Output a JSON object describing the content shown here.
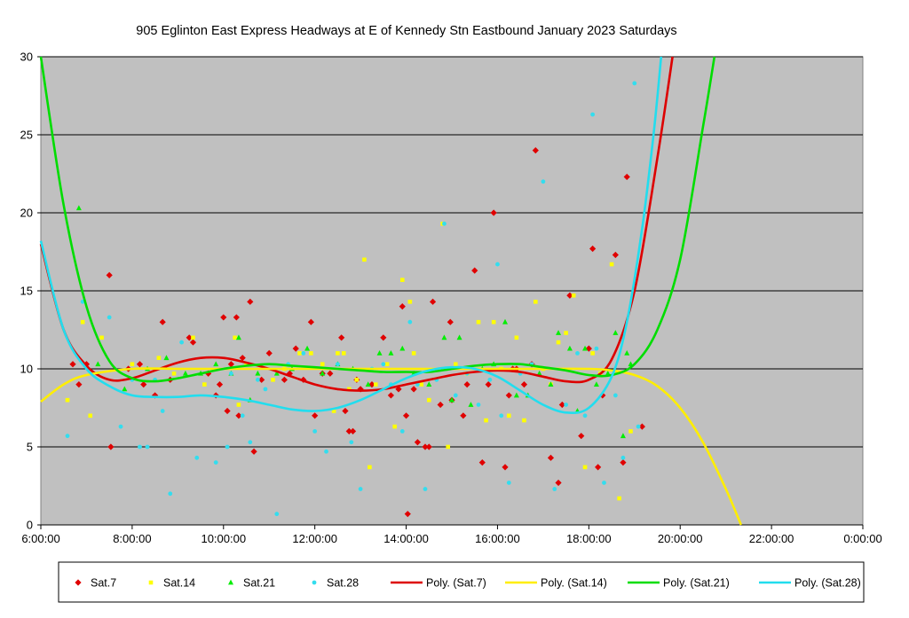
{
  "chart_data": {
    "type": "scatter",
    "title": "905 Eglinton East Express Headways at E of Kennedy Stn Eastbound January 2023  Saturdays",
    "xlabel": "",
    "ylabel": "",
    "xlim": [
      "6:00:00",
      "0:00:00"
    ],
    "ylim": [
      0,
      30
    ],
    "x_ticks": [
      "6:00:00",
      "8:00:00",
      "10:00:00",
      "12:00:00",
      "14:00:00",
      "16:00:00",
      "18:00:00",
      "20:00:00",
      "22:00:00",
      "0:00:00"
    ],
    "y_ticks": [
      "0",
      "5",
      "10",
      "15",
      "20",
      "25",
      "30"
    ],
    "grid": "horizontal",
    "plot_background": "#c0c0c0",
    "legend_position": "bottom",
    "series": [
      {
        "name": "Sat.7",
        "marker": "diamond",
        "color": "#e00000",
        "x": [
          "6:42",
          "6:50",
          "7:00",
          "7:30",
          "7:32",
          "7:55",
          "8:10",
          "8:15",
          "8:30",
          "8:40",
          "8:50",
          "9:15",
          "9:20",
          "9:40",
          "9:50",
          "9:55",
          "10:00",
          "10:05",
          "10:10",
          "10:17",
          "10:20",
          "10:25",
          "10:35",
          "10:40",
          "10:50",
          "11:00",
          "11:20",
          "11:27",
          "11:35",
          "11:45",
          "11:55",
          "12:00",
          "12:10",
          "12:20",
          "12:35",
          "12:40",
          "12:45",
          "12:50",
          "12:55",
          "13:00",
          "13:15",
          "13:30",
          "13:40",
          "13:50",
          "13:55",
          "14:00",
          "14:02",
          "14:10",
          "14:15",
          "14:25",
          "14:30",
          "14:35",
          "14:45",
          "14:58",
          "15:00",
          "15:15",
          "15:20",
          "15:30",
          "15:40",
          "15:48",
          "15:55",
          "16:10",
          "16:15",
          "16:20",
          "16:25",
          "16:35",
          "16:45",
          "16:50",
          "17:10",
          "17:20",
          "17:25",
          "17:35",
          "17:50",
          "18:00",
          "18:05",
          "18:12",
          "18:18",
          "18:35",
          "18:45",
          "18:50",
          "19:10"
        ],
        "y": [
          10.3,
          9.0,
          10.3,
          16.0,
          5.0,
          10.0,
          10.3,
          9.0,
          8.3,
          13.0,
          9.3,
          12.0,
          11.7,
          9.7,
          8.3,
          9.0,
          13.3,
          7.3,
          10.3,
          13.3,
          7.0,
          10.7,
          14.3,
          4.7,
          9.3,
          11.0,
          9.3,
          9.7,
          11.3,
          9.3,
          13.0,
          7.0,
          9.7,
          9.7,
          12.0,
          7.3,
          6.0,
          6.0,
          9.3,
          8.7,
          9.0,
          12.0,
          8.3,
          8.7,
          14.0,
          7.0,
          0.7,
          8.7,
          5.3,
          5.0,
          5.0,
          14.3,
          7.7,
          13.0,
          8.0,
          7.0,
          9.0,
          16.3,
          4.0,
          9.0,
          20.0,
          3.7,
          8.3,
          10.0,
          10.0,
          9.0,
          10.3,
          24.0,
          4.3,
          2.7,
          7.7,
          14.7,
          5.7,
          11.3,
          17.7,
          3.7,
          8.3,
          17.3,
          4.0,
          22.3,
          6.3
        ]
      },
      {
        "name": "Sat.14",
        "marker": "square",
        "color": "#ffff00",
        "x": [
          "6:35",
          "6:55",
          "7:05",
          "7:20",
          "8:00",
          "8:35",
          "8:55",
          "9:20",
          "9:35",
          "10:15",
          "10:20",
          "10:30",
          "11:05",
          "11:20",
          "11:40",
          "11:55",
          "12:10",
          "12:25",
          "12:30",
          "12:38",
          "12:45",
          "12:55",
          "13:05",
          "13:12",
          "13:20",
          "13:35",
          "13:45",
          "13:55",
          "14:05",
          "14:10",
          "14:20",
          "14:30",
          "14:48",
          "14:55",
          "15:05",
          "15:20",
          "15:35",
          "15:45",
          "15:55",
          "16:05",
          "16:15",
          "16:25",
          "16:35",
          "16:50",
          "17:00",
          "17:10",
          "17:20",
          "17:30",
          "17:40",
          "17:55",
          "18:05",
          "18:15",
          "18:30",
          "18:40",
          "18:55"
        ],
        "y": [
          8.0,
          13.0,
          7.0,
          12.0,
          10.3,
          10.7,
          9.7,
          12.0,
          9.0,
          12.0,
          7.7,
          10.3,
          9.3,
          10.0,
          11.0,
          11.0,
          10.3,
          7.3,
          11.0,
          11.0,
          8.7,
          9.3,
          17.0,
          3.7,
          9.0,
          10.3,
          6.3,
          15.7,
          14.3,
          11.0,
          9.0,
          8.0,
          19.3,
          5.0,
          10.3,
          9.7,
          13.0,
          6.7,
          13.0,
          10.0,
          7.0,
          12.0,
          6.7,
          14.3,
          10.0,
          9.0,
          11.7,
          12.3,
          14.7,
          3.7,
          11.0,
          9.7,
          16.7,
          1.7,
          6.0
        ]
      },
      {
        "name": "Sat.21",
        "marker": "triangle",
        "color": "#00ee00",
        "x": [
          "6:50",
          "7:15",
          "7:50",
          "8:20",
          "8:45",
          "9:10",
          "9:30",
          "9:50",
          "10:10",
          "10:20",
          "10:35",
          "10:45",
          "11:10",
          "11:30",
          "11:50",
          "12:10",
          "12:30",
          "12:50",
          "13:10",
          "13:25",
          "13:40",
          "13:55",
          "14:10",
          "14:30",
          "14:50",
          "15:00",
          "15:10",
          "15:25",
          "15:40",
          "15:55",
          "16:10",
          "16:25",
          "16:40",
          "16:55",
          "17:10",
          "17:20",
          "17:35",
          "17:45",
          "17:55",
          "18:10",
          "18:25",
          "18:35",
          "18:45",
          "18:50",
          "18:55"
        ],
        "y": [
          20.3,
          10.3,
          8.7,
          10.0,
          10.7,
          9.7,
          9.7,
          10.3,
          9.7,
          12.0,
          8.0,
          9.7,
          9.7,
          10.0,
          11.3,
          9.7,
          10.3,
          10.0,
          9.0,
          11.0,
          11.0,
          11.3,
          9.7,
          9.0,
          12.0,
          8.0,
          12.0,
          7.7,
          10.0,
          10.3,
          13.0,
          8.3,
          8.3,
          9.7,
          9.0,
          12.3,
          11.3,
          7.3,
          11.3,
          9.0,
          9.7,
          12.3,
          5.7,
          11.0,
          10.3
        ]
      },
      {
        "name": "Sat.28",
        "marker": "dot",
        "color": "#33ddee",
        "x": [
          "6:35",
          "6:55",
          "7:15",
          "7:30",
          "7:45",
          "8:00",
          "8:10",
          "8:20",
          "8:30",
          "8:40",
          "8:50",
          "9:05",
          "9:25",
          "9:50",
          "10:05",
          "10:10",
          "10:25",
          "10:35",
          "10:45",
          "10:55",
          "11:10",
          "11:25",
          "11:45",
          "12:00",
          "12:15",
          "12:30",
          "12:48",
          "13:00",
          "13:15",
          "13:30",
          "13:40",
          "13:55",
          "14:05",
          "14:15",
          "14:25",
          "14:40",
          "14:50",
          "15:05",
          "15:20",
          "15:35",
          "15:50",
          "16:00",
          "16:05",
          "16:15",
          "16:30",
          "16:45",
          "17:00",
          "17:15",
          "17:30",
          "17:45",
          "17:55",
          "18:05",
          "18:10",
          "18:20",
          "18:35",
          "18:45",
          "19:00",
          "19:05"
        ],
        "y": [
          5.7,
          14.3,
          9.7,
          13.3,
          6.3,
          9.3,
          5.0,
          5.0,
          9.3,
          7.3,
          2.0,
          11.7,
          4.3,
          4.0,
          5.0,
          9.7,
          7.0,
          5.3,
          9.3,
          8.7,
          0.7,
          10.3,
          11.0,
          6.0,
          4.7,
          10.3,
          5.3,
          2.3,
          10.0,
          10.3,
          9.0,
          6.0,
          13.0,
          9.0,
          2.3,
          9.3,
          19.3,
          8.3,
          9.7,
          7.7,
          9.3,
          16.7,
          7.0,
          2.7,
          9.7,
          10.3,
          22.0,
          2.3,
          7.7,
          11.0,
          7.0,
          26.3,
          11.3,
          2.7,
          8.3,
          4.3,
          28.3,
          6.3
        ]
      }
    ],
    "trendlines": [
      {
        "name": "Poly. (Sat.7)",
        "color": "#dd0000",
        "x": [
          "6:00",
          "6:30",
          "7:00",
          "7:30",
          "8:00",
          "8:30",
          "9:00",
          "9:30",
          "10:00",
          "10:30",
          "11:00",
          "11:30",
          "12:00",
          "12:30",
          "13:00",
          "13:30",
          "14:00",
          "14:30",
          "15:00",
          "15:30",
          "16:00",
          "16:30",
          "17:00",
          "17:30",
          "18:00",
          "18:30",
          "19:00",
          "19:30",
          "19:50"
        ],
        "y": [
          18.0,
          12.5,
          10.2,
          9.3,
          9.4,
          9.9,
          10.4,
          10.7,
          10.7,
          10.4,
          10.0,
          9.5,
          9.0,
          8.7,
          8.6,
          8.7,
          9.0,
          9.3,
          9.6,
          9.8,
          9.9,
          9.8,
          9.5,
          9.2,
          9.3,
          10.6,
          15.0,
          23.5,
          30.0
        ]
      },
      {
        "name": "Poly. (Sat.14)",
        "color": "#ffee00",
        "x": [
          "6:00",
          "6:30",
          "7:00",
          "8:00",
          "9:00",
          "10:00",
          "11:00",
          "12:00",
          "13:00",
          "14:00",
          "15:00",
          "16:00",
          "17:00",
          "18:00",
          "18:30",
          "19:00",
          "19:30",
          "20:00",
          "20:30",
          "21:00",
          "21:20"
        ],
        "y": [
          7.9,
          9.0,
          9.6,
          10.0,
          10.0,
          10.0,
          10.0,
          10.0,
          10.0,
          10.0,
          10.0,
          10.0,
          10.0,
          10.0,
          9.9,
          9.6,
          8.9,
          7.5,
          5.3,
          2.3,
          0.0
        ]
      },
      {
        "name": "Poly. (Sat.21)",
        "color": "#00dd00",
        "x": [
          "6:00",
          "6:30",
          "7:00",
          "7:30",
          "8:00",
          "8:30",
          "9:00",
          "9:30",
          "10:00",
          "10:30",
          "11:00",
          "11:30",
          "12:00",
          "12:30",
          "13:00",
          "13:30",
          "14:00",
          "14:30",
          "15:00",
          "15:30",
          "16:00",
          "16:30",
          "17:00",
          "17:30",
          "18:00",
          "18:30",
          "19:00",
          "19:30",
          "20:00",
          "20:30",
          "20:45"
        ],
        "y": [
          30.0,
          20.5,
          14.0,
          10.5,
          9.4,
          9.2,
          9.4,
          9.7,
          10.0,
          10.2,
          10.3,
          10.2,
          10.1,
          10.0,
          9.9,
          9.8,
          9.8,
          9.8,
          10.0,
          10.2,
          10.3,
          10.3,
          10.1,
          9.9,
          9.6,
          9.6,
          10.3,
          12.5,
          17.0,
          25.5,
          30.0
        ]
      },
      {
        "name": "Poly. (Sat.28)",
        "color": "#22ddee",
        "x": [
          "6:00",
          "6:30",
          "7:00",
          "7:30",
          "8:00",
          "8:30",
          "9:00",
          "9:30",
          "10:00",
          "10:30",
          "11:00",
          "11:30",
          "12:00",
          "12:30",
          "13:00",
          "13:30",
          "14:00",
          "14:30",
          "15:00",
          "15:30",
          "16:00",
          "16:30",
          "17:00",
          "17:30",
          "18:00",
          "18:30",
          "18:50",
          "19:10",
          "19:25",
          "19:35"
        ],
        "y": [
          18.2,
          12.5,
          10.0,
          8.9,
          8.3,
          8.2,
          8.2,
          8.3,
          8.2,
          8.0,
          7.7,
          7.4,
          7.3,
          7.5,
          8.0,
          8.7,
          9.4,
          9.9,
          10.1,
          10.0,
          9.5,
          8.6,
          7.7,
          7.2,
          7.5,
          9.5,
          13.0,
          19.0,
          25.0,
          30.0
        ]
      }
    ]
  }
}
